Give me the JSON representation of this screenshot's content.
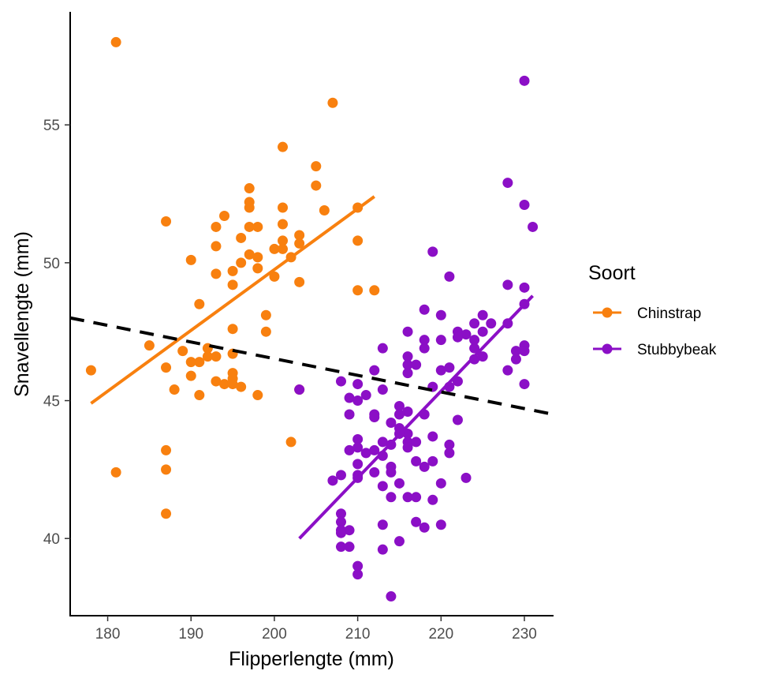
{
  "chart_data": {
    "type": "scatter",
    "xlabel": "Flipperlengte (mm)",
    "ylabel": "Snavellengte (mm)",
    "xlim": [
      175.5,
      233.5
    ],
    "ylim": [
      37.2,
      59.1
    ],
    "x_ticks": [
      180,
      190,
      200,
      210,
      220,
      230
    ],
    "y_ticks": [
      40,
      45,
      50,
      55
    ],
    "grid": false,
    "legend": {
      "title": "Soort",
      "placement": "right",
      "entries": [
        "Chinstrap",
        "Stubbybeak"
      ]
    },
    "series": [
      {
        "name": "Chinstrap",
        "color": "#F8800F",
        "points": [
          [
            181,
            58.0
          ],
          [
            207,
            55.8
          ],
          [
            201,
            54.2
          ],
          [
            205,
            53.5
          ],
          [
            205,
            52.8
          ],
          [
            197,
            52.7
          ],
          [
            197,
            52.2
          ],
          [
            197,
            52.0
          ],
          [
            201,
            52.0
          ],
          [
            210,
            52.0
          ],
          [
            206,
            51.9
          ],
          [
            194,
            51.7
          ],
          [
            187,
            51.5
          ],
          [
            201,
            51.4
          ],
          [
            193,
            51.3
          ],
          [
            197,
            51.3
          ],
          [
            198,
            51.3
          ],
          [
            203,
            51.0
          ],
          [
            196,
            50.9
          ],
          [
            201,
            50.8
          ],
          [
            203,
            50.7
          ],
          [
            193,
            50.6
          ],
          [
            201,
            50.5
          ],
          [
            200,
            50.5
          ],
          [
            210,
            50.8
          ],
          [
            197,
            50.3
          ],
          [
            198,
            50.2
          ],
          [
            202,
            50.2
          ],
          [
            190,
            50.1
          ],
          [
            196,
            50.0
          ],
          [
            198,
            49.8
          ],
          [
            195,
            49.7
          ],
          [
            193,
            49.6
          ],
          [
            200,
            49.5
          ],
          [
            195,
            49.2
          ],
          [
            203,
            49.3
          ],
          [
            210,
            49.0
          ],
          [
            212,
            49.0
          ],
          [
            191,
            48.5
          ],
          [
            199,
            48.1
          ],
          [
            195,
            47.6
          ],
          [
            199,
            47.5
          ],
          [
            185,
            47.0
          ],
          [
            192,
            46.9
          ],
          [
            189,
            46.8
          ],
          [
            195,
            46.7
          ],
          [
            192,
            46.6
          ],
          [
            193,
            46.6
          ],
          [
            191,
            46.4
          ],
          [
            190,
            46.4
          ],
          [
            187,
            46.2
          ],
          [
            178,
            46.1
          ],
          [
            195,
            46.0
          ],
          [
            190,
            45.9
          ],
          [
            195,
            45.8
          ],
          [
            193,
            45.7
          ],
          [
            194,
            45.6
          ],
          [
            195,
            45.6
          ],
          [
            196,
            45.5
          ],
          [
            188,
            45.4
          ],
          [
            203,
            45.4
          ],
          [
            191,
            45.2
          ],
          [
            198,
            45.2
          ],
          [
            202,
            43.5
          ],
          [
            187,
            43.2
          ],
          [
            187,
            42.5
          ],
          [
            181,
            42.4
          ],
          [
            187,
            40.9
          ]
        ]
      },
      {
        "name": "Stubbybeak",
        "color": "#8B0FC6",
        "points": [
          [
            230,
            56.6
          ],
          [
            228,
            52.9
          ],
          [
            230,
            52.1
          ],
          [
            231,
            51.3
          ],
          [
            219,
            50.4
          ],
          [
            221,
            49.5
          ],
          [
            228,
            49.2
          ],
          [
            230,
            49.1
          ],
          [
            230,
            48.5
          ],
          [
            218,
            48.3
          ],
          [
            220,
            48.1
          ],
          [
            225,
            48.1
          ],
          [
            224,
            47.8
          ],
          [
            226,
            47.8
          ],
          [
            228,
            47.8
          ],
          [
            216,
            47.5
          ],
          [
            222,
            47.5
          ],
          [
            225,
            47.5
          ],
          [
            223,
            47.4
          ],
          [
            222,
            47.3
          ],
          [
            218,
            47.2
          ],
          [
            220,
            47.2
          ],
          [
            224,
            47.2
          ],
          [
            230,
            47.0
          ],
          [
            218,
            46.9
          ],
          [
            213,
            46.9
          ],
          [
            224,
            46.9
          ],
          [
            230,
            46.8
          ],
          [
            229,
            46.8
          ],
          [
            216,
            46.6
          ],
          [
            224,
            46.5
          ],
          [
            225,
            46.6
          ],
          [
            229,
            46.5
          ],
          [
            217,
            46.3
          ],
          [
            216,
            46.3
          ],
          [
            221,
            46.2
          ],
          [
            220,
            46.1
          ],
          [
            228,
            46.1
          ],
          [
            212,
            46.1
          ],
          [
            216,
            46.0
          ],
          [
            222,
            45.7
          ],
          [
            208,
            45.7
          ],
          [
            210,
            45.6
          ],
          [
            230,
            45.6
          ],
          [
            219,
            45.5
          ],
          [
            221,
            45.5
          ],
          [
            213,
            45.4
          ],
          [
            203,
            45.4
          ],
          [
            211,
            45.2
          ],
          [
            209,
            45.1
          ],
          [
            210,
            45.0
          ],
          [
            215,
            44.8
          ],
          [
            216,
            44.6
          ],
          [
            215,
            44.5
          ],
          [
            209,
            44.5
          ],
          [
            212,
            44.5
          ],
          [
            218,
            44.5
          ],
          [
            212,
            44.4
          ],
          [
            214,
            44.2
          ],
          [
            215,
            44.0
          ],
          [
            222,
            44.3
          ],
          [
            216,
            43.8
          ],
          [
            215,
            43.8
          ],
          [
            219,
            43.7
          ],
          [
            213,
            43.5
          ],
          [
            214,
            43.4
          ],
          [
            216,
            43.5
          ],
          [
            217,
            43.5
          ],
          [
            210,
            43.6
          ],
          [
            221,
            43.4
          ],
          [
            210,
            43.3
          ],
          [
            216,
            43.3
          ],
          [
            209,
            43.2
          ],
          [
            212,
            43.2
          ],
          [
            213,
            43.0
          ],
          [
            221,
            43.1
          ],
          [
            211,
            43.1
          ],
          [
            217,
            42.8
          ],
          [
            214,
            42.6
          ],
          [
            219,
            42.8
          ],
          [
            210,
            42.7
          ],
          [
            212,
            42.4
          ],
          [
            214,
            42.4
          ],
          [
            218,
            42.6
          ],
          [
            210,
            42.3
          ],
          [
            207,
            42.1
          ],
          [
            223,
            42.2
          ],
          [
            215,
            42.0
          ],
          [
            210,
            42.2
          ],
          [
            220,
            42.0
          ],
          [
            213,
            41.9
          ],
          [
            208,
            42.3
          ],
          [
            214,
            41.5
          ],
          [
            216,
            41.5
          ],
          [
            219,
            41.4
          ],
          [
            217,
            41.5
          ],
          [
            208,
            40.9
          ],
          [
            208,
            40.6
          ],
          [
            213,
            40.5
          ],
          [
            218,
            40.4
          ],
          [
            220,
            40.5
          ],
          [
            209,
            40.3
          ],
          [
            208,
            40.3
          ],
          [
            217,
            40.6
          ],
          [
            208,
            40.2
          ],
          [
            213,
            39.6
          ],
          [
            208,
            39.7
          ],
          [
            209,
            39.7
          ],
          [
            215,
            39.9
          ],
          [
            210,
            39.0
          ],
          [
            210,
            38.7
          ],
          [
            214,
            37.9
          ]
        ]
      }
    ],
    "trendlines": [
      {
        "series": "Chinstrap",
        "x": [
          178,
          212
        ],
        "y": [
          44.9,
          52.4
        ],
        "color": "#F8800F",
        "style": "solid"
      },
      {
        "series": "Stubbybeak",
        "x": [
          203,
          231
        ],
        "y": [
          40.0,
          48.8
        ],
        "color": "#8B0FC6",
        "style": "solid"
      },
      {
        "series": "all",
        "x": [
          175.5,
          233.5
        ],
        "y": [
          48.0,
          44.5
        ],
        "color": "#000000",
        "style": "dashed"
      }
    ]
  }
}
